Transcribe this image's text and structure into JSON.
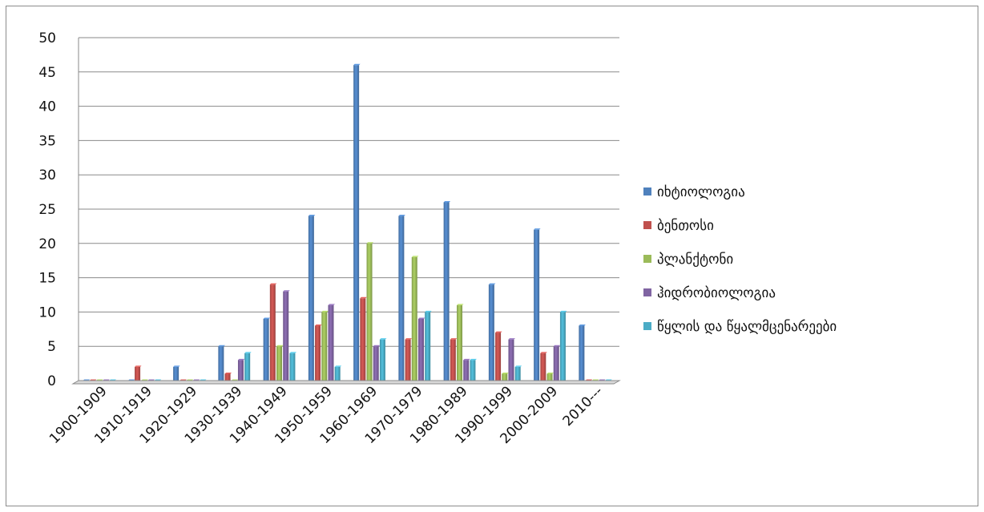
{
  "chart_data": {
    "type": "bar",
    "title": "",
    "xlabel": "",
    "ylabel": "",
    "ylim": [
      0,
      50
    ],
    "y_ticks": [
      0,
      5,
      10,
      15,
      20,
      25,
      30,
      35,
      40,
      45,
      50
    ],
    "grid": true,
    "legend_position": "right",
    "categories": [
      "1900-1909",
      "1910-1919",
      "1920-1929",
      "1930-1939",
      "1940-1949",
      "1950-1959",
      "1960-1969",
      "1970-1979",
      "1980-1989",
      "1990-1999",
      "2000-2009",
      "2010---"
    ],
    "series": [
      {
        "name": "იხტიოლოგია",
        "color": "#4f81bd",
        "values": [
          0,
          0,
          2,
          5,
          9,
          24,
          46,
          24,
          26,
          14,
          22,
          8
        ]
      },
      {
        "name": "ბენთოსი",
        "color": "#c0504d",
        "values": [
          0,
          2,
          0,
          1,
          14,
          8,
          12,
          6,
          6,
          7,
          4,
          0
        ]
      },
      {
        "name": "პლანქტონი",
        "color": "#9bbb59",
        "values": [
          0,
          0,
          0,
          0,
          5,
          10,
          20,
          18,
          11,
          1,
          1,
          0
        ]
      },
      {
        "name": "ჰიდრობიოლოგია",
        "color": "#8064a2",
        "values": [
          0,
          0,
          0,
          3,
          13,
          11,
          5,
          9,
          3,
          6,
          5,
          0
        ]
      },
      {
        "name": "წყლის და წყალმცენარეები",
        "color": "#4bacc6",
        "values": [
          0,
          0,
          0,
          4,
          4,
          2,
          6,
          10,
          3,
          2,
          10,
          0
        ]
      }
    ]
  }
}
